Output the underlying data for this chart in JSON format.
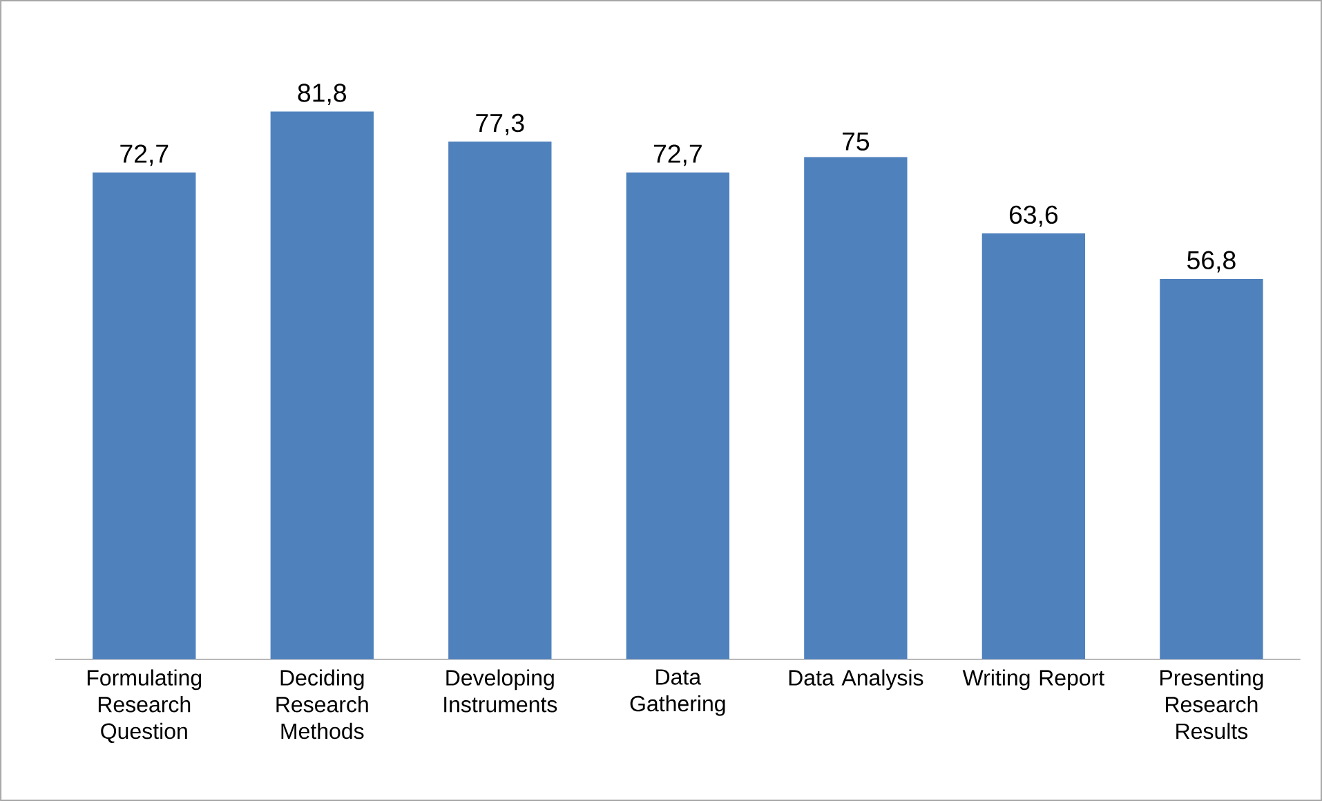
{
  "chart_data": {
    "type": "bar",
    "categories": [
      "Formulating Research Question",
      "Deciding Research Methods",
      "Developing Instruments",
      "Data Gathering",
      "Data Analysis",
      "Writing Report",
      "Presenting Research Results"
    ],
    "values": [
      72.7,
      81.8,
      77.3,
      72.7,
      75,
      63.6,
      56.8
    ],
    "value_labels": [
      "72,7",
      "81,8",
      "77,3",
      "72,7",
      "75",
      "63,6",
      "56,8"
    ],
    "color": "#4f81bd",
    "tick_labels": "x"
  }
}
